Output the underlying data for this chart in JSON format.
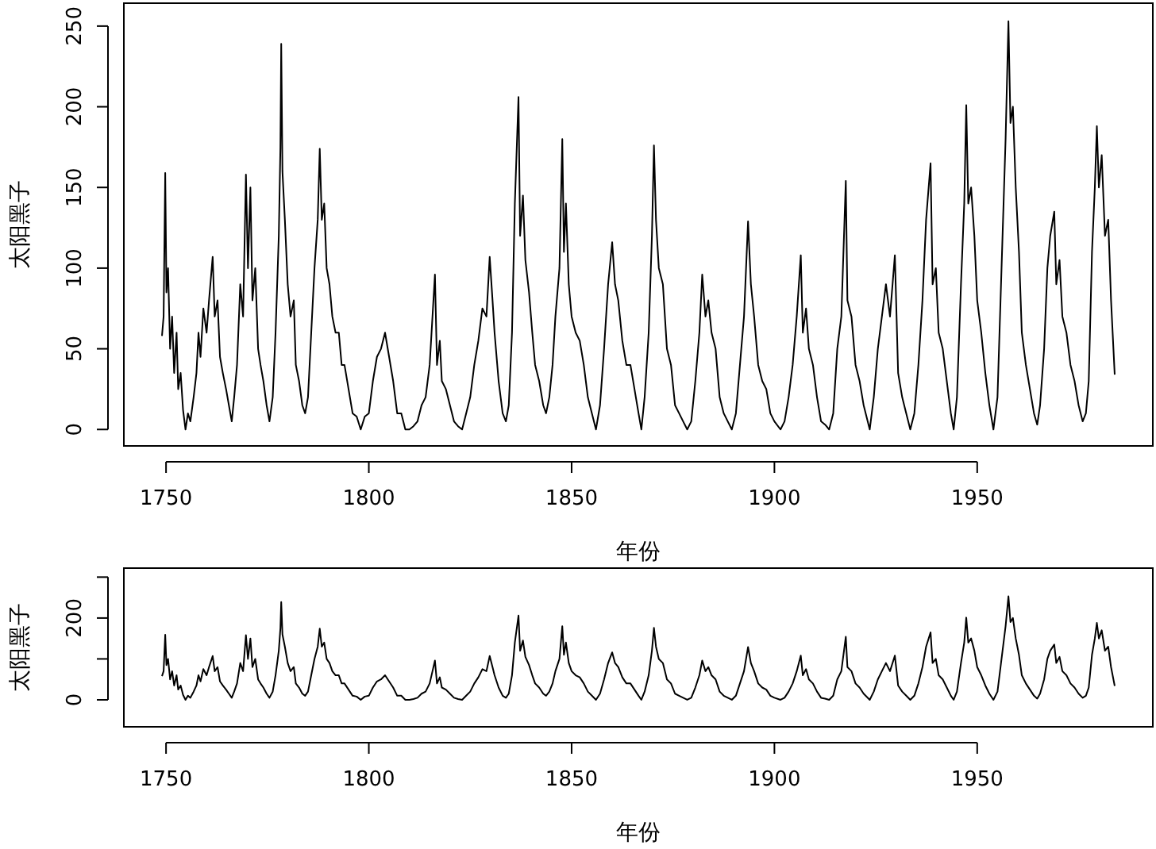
{
  "chart_data": [
    {
      "type": "line",
      "xlabel": "年份",
      "ylabel": "太阳黑子",
      "xlim": [
        1739.6,
        1993.3
      ],
      "ylim": [
        -10.2,
        264.2
      ],
      "xticks": [
        1750,
        1800,
        1850,
        1900,
        1950
      ],
      "yticks": [
        0,
        50,
        100,
        150,
        200,
        250
      ],
      "grid": false,
      "series": [
        {
          "color": "#000000",
          "x": [
            1749.0,
            1749.4,
            1749.8,
            1750.1,
            1750.5,
            1751,
            1751.5,
            1752,
            1752.6,
            1753,
            1753.6,
            1754.2,
            1754.8,
            1755.4,
            1756,
            1756.8,
            1757.5,
            1758,
            1758.5,
            1759.2,
            1760,
            1760.6,
            1761.5,
            1762,
            1762.7,
            1763.3,
            1764,
            1764.8,
            1765.5,
            1766.2,
            1766.8,
            1767.5,
            1768.3,
            1769,
            1769.7,
            1770.2,
            1770.8,
            1771.3,
            1772,
            1772.7,
            1773.3,
            1774,
            1774.8,
            1775.5,
            1776.3,
            1777,
            1777.8,
            1778.2,
            1778.4,
            1778.7,
            1779.3,
            1780,
            1780.7,
            1781.5,
            1782,
            1782.8,
            1783.6,
            1784.3,
            1785,
            1785.8,
            1786.6,
            1787.4,
            1787.9,
            1788.4,
            1789,
            1789.6,
            1790.3,
            1791,
            1791.8,
            1792.6,
            1793.3,
            1794,
            1795,
            1796,
            1797,
            1798,
            1799,
            1800,
            1801,
            1802,
            1803,
            1804,
            1805,
            1806,
            1807,
            1808,
            1809,
            1810,
            1811,
            1812,
            1813,
            1814,
            1815,
            1816.3,
            1816.8,
            1817.5,
            1818,
            1819,
            1820,
            1821,
            1822,
            1823,
            1824,
            1825,
            1826,
            1827,
            1828,
            1829,
            1829.8,
            1830.5,
            1831,
            1832,
            1833,
            1833.8,
            1834.5,
            1835.3,
            1836,
            1836.9,
            1837.3,
            1838,
            1838.6,
            1839.5,
            1840.3,
            1841,
            1842,
            1843,
            1843.7,
            1844.5,
            1845.3,
            1846,
            1847,
            1847.7,
            1848.1,
            1848.6,
            1849.3,
            1850,
            1851,
            1852,
            1853,
            1854,
            1855,
            1856,
            1857,
            1858,
            1859,
            1860,
            1860.7,
            1861.5,
            1862.5,
            1863.5,
            1864.5,
            1865.5,
            1866.5,
            1867.2,
            1868,
            1869,
            1869.8,
            1870.3,
            1870.8,
            1871.5,
            1872.5,
            1873.5,
            1874.5,
            1875.5,
            1876.5,
            1877.5,
            1878.5,
            1879.5,
            1880.5,
            1881.5,
            1882.2,
            1883,
            1883.7,
            1884.5,
            1885.5,
            1886.5,
            1887.5,
            1888.5,
            1889.5,
            1890.5,
            1891.5,
            1892.5,
            1893.5,
            1894.2,
            1895,
            1896,
            1897,
            1898,
            1899,
            1900,
            1901.5,
            1902.5,
            1903.5,
            1904.5,
            1905.5,
            1906.5,
            1907,
            1907.8,
            1908.5,
            1909.5,
            1910.5,
            1911.5,
            1912.5,
            1913.5,
            1914.5,
            1915.5,
            1916.5,
            1917.6,
            1918,
            1919,
            1920,
            1921,
            1922,
            1923.5,
            1924.5,
            1925.5,
            1926.5,
            1927.5,
            1928.5,
            1929.7,
            1930.5,
            1931.5,
            1932.5,
            1933.5,
            1934.5,
            1935.5,
            1936.5,
            1937.4,
            1938.5,
            1939,
            1939.8,
            1940.5,
            1941.5,
            1942.5,
            1943.5,
            1944.2,
            1945,
            1946,
            1946.8,
            1947.3,
            1947.8,
            1948.5,
            1949.3,
            1950,
            1951,
            1952,
            1953,
            1954,
            1955,
            1956,
            1957,
            1957.7,
            1958.2,
            1958.8,
            1959.5,
            1960.3,
            1961,
            1962,
            1963,
            1964,
            1964.8,
            1965.5,
            1966.5,
            1967.3,
            1968,
            1969,
            1969.5,
            1970.3,
            1971,
            1972,
            1973,
            1974,
            1975,
            1976,
            1976.8,
            1977.5,
            1978.3,
            1979,
            1979.5,
            1980,
            1980.7,
            1981.5,
            1982.3,
            1983,
            1983.9
          ],
          "values": [
            58,
            70,
            159,
            85,
            100,
            50,
            70,
            35,
            60,
            25,
            35,
            12,
            0,
            10,
            5,
            20,
            35,
            60,
            45,
            75,
            60,
            80,
            107,
            70,
            80,
            45,
            35,
            25,
            15,
            5,
            20,
            40,
            90,
            70,
            158,
            100,
            150,
            80,
            100,
            50,
            40,
            30,
            15,
            5,
            20,
            60,
            120,
            175,
            239,
            160,
            130,
            90,
            70,
            80,
            40,
            30,
            15,
            10,
            20,
            60,
            100,
            130,
            174,
            130,
            140,
            100,
            90,
            70,
            60,
            60,
            40,
            40,
            25,
            10,
            8,
            0,
            8,
            10,
            30,
            45,
            50,
            60,
            45,
            30,
            10,
            10,
            0,
            0,
            2,
            5,
            15,
            20,
            40,
            96,
            40,
            55,
            30,
            25,
            15,
            5,
            2,
            0,
            10,
            20,
            40,
            55,
            75,
            70,
            107,
            80,
            60,
            30,
            10,
            5,
            15,
            60,
            140,
            206,
            120,
            145,
            105,
            85,
            60,
            40,
            30,
            15,
            10,
            20,
            40,
            70,
            100,
            180,
            110,
            140,
            90,
            70,
            60,
            55,
            40,
            20,
            10,
            0,
            15,
            50,
            90,
            116,
            90,
            80,
            55,
            40,
            40,
            25,
            10,
            0,
            20,
            60,
            120,
            176,
            130,
            100,
            90,
            50,
            40,
            15,
            10,
            5,
            0,
            5,
            30,
            60,
            96,
            70,
            80,
            60,
            50,
            20,
            10,
            5,
            0,
            10,
            40,
            70,
            129,
            90,
            70,
            40,
            30,
            25,
            10,
            5,
            0,
            5,
            20,
            40,
            70,
            108,
            60,
            75,
            50,
            40,
            20,
            5,
            3,
            0,
            10,
            50,
            70,
            154,
            80,
            70,
            40,
            30,
            15,
            0,
            20,
            50,
            70,
            90,
            70,
            108,
            35,
            20,
            10,
            0,
            10,
            40,
            80,
            130,
            165,
            90,
            100,
            60,
            50,
            30,
            10,
            0,
            20,
            90,
            140,
            201,
            140,
            150,
            120,
            80,
            60,
            35,
            15,
            0,
            20,
            100,
            180,
            253,
            190,
            200,
            150,
            110,
            60,
            40,
            25,
            10,
            3,
            15,
            50,
            100,
            120,
            135,
            90,
            105,
            70,
            60,
            40,
            30,
            15,
            5,
            10,
            30,
            110,
            150,
            188,
            150,
            170,
            120,
            130,
            80,
            34
          ]
        }
      ]
    },
    {
      "type": "line",
      "xlabel": "年份",
      "ylabel": "太阳黑子",
      "xlim": [
        1739.6,
        1993.3
      ],
      "ylim": [
        -66,
        322
      ],
      "xticks": [
        1750,
        1800,
        1850,
        1900,
        1950
      ],
      "yticks": [
        0,
        {
          "value": 100,
          "label": null
        },
        200,
        {
          "value": 300,
          "label": null
        }
      ],
      "grid": false,
      "series": [
        {
          "color": "#000000",
          "x": [
            1749.0,
            1749.4,
            1749.8,
            1750.1,
            1750.5,
            1751,
            1751.5,
            1752,
            1752.6,
            1753,
            1753.6,
            1754.2,
            1754.8,
            1755.4,
            1756,
            1756.8,
            1757.5,
            1758,
            1758.5,
            1759.2,
            1760,
            1760.6,
            1761.5,
            1762,
            1762.7,
            1763.3,
            1764,
            1764.8,
            1765.5,
            1766.2,
            1766.8,
            1767.5,
            1768.3,
            1769,
            1769.7,
            1770.2,
            1770.8,
            1771.3,
            1772,
            1772.7,
            1773.3,
            1774,
            1774.8,
            1775.5,
            1776.3,
            1777,
            1777.8,
            1778.2,
            1778.4,
            1778.7,
            1779.3,
            1780,
            1780.7,
            1781.5,
            1782,
            1782.8,
            1783.6,
            1784.3,
            1785,
            1785.8,
            1786.6,
            1787.4,
            1787.9,
            1788.4,
            1789,
            1789.6,
            1790.3,
            1791,
            1791.8,
            1792.6,
            1793.3,
            1794,
            1795,
            1796,
            1797,
            1798,
            1799,
            1800,
            1801,
            1802,
            1803,
            1804,
            1805,
            1806,
            1807,
            1808,
            1809,
            1810,
            1811,
            1812,
            1813,
            1814,
            1815,
            1816.3,
            1816.8,
            1817.5,
            1818,
            1819,
            1820,
            1821,
            1822,
            1823,
            1824,
            1825,
            1826,
            1827,
            1828,
            1829,
            1829.8,
            1830.5,
            1831,
            1832,
            1833,
            1833.8,
            1834.5,
            1835.3,
            1836,
            1836.9,
            1837.3,
            1838,
            1838.6,
            1839.5,
            1840.3,
            1841,
            1842,
            1843,
            1843.7,
            1844.5,
            1845.3,
            1846,
            1847,
            1847.7,
            1848.1,
            1848.6,
            1849.3,
            1850,
            1851,
            1852,
            1853,
            1854,
            1855,
            1856,
            1857,
            1858,
            1859,
            1860,
            1860.7,
            1861.5,
            1862.5,
            1863.5,
            1864.5,
            1865.5,
            1866.5,
            1867.2,
            1868,
            1869,
            1869.8,
            1870.3,
            1870.8,
            1871.5,
            1872.5,
            1873.5,
            1874.5,
            1875.5,
            1876.5,
            1877.5,
            1878.5,
            1879.5,
            1880.5,
            1881.5,
            1882.2,
            1883,
            1883.7,
            1884.5,
            1885.5,
            1886.5,
            1887.5,
            1888.5,
            1889.5,
            1890.5,
            1891.5,
            1892.5,
            1893.5,
            1894.2,
            1895,
            1896,
            1897,
            1898,
            1899,
            1900,
            1901.5,
            1902.5,
            1903.5,
            1904.5,
            1905.5,
            1906.5,
            1907,
            1907.8,
            1908.5,
            1909.5,
            1910.5,
            1911.5,
            1912.5,
            1913.5,
            1914.5,
            1915.5,
            1916.5,
            1917.6,
            1918,
            1919,
            1920,
            1921,
            1922,
            1923.5,
            1924.5,
            1925.5,
            1926.5,
            1927.5,
            1928.5,
            1929.7,
            1930.5,
            1931.5,
            1932.5,
            1933.5,
            1934.5,
            1935.5,
            1936.5,
            1937.4,
            1938.5,
            1939,
            1939.8,
            1940.5,
            1941.5,
            1942.5,
            1943.5,
            1944.2,
            1945,
            1946,
            1946.8,
            1947.3,
            1947.8,
            1948.5,
            1949.3,
            1950,
            1951,
            1952,
            1953,
            1954,
            1955,
            1956,
            1957,
            1957.7,
            1958.2,
            1958.8,
            1959.5,
            1960.3,
            1961,
            1962,
            1963,
            1964,
            1964.8,
            1965.5,
            1966.5,
            1967.3,
            1968,
            1969,
            1969.5,
            1970.3,
            1971,
            1972,
            1973,
            1974,
            1975,
            1976,
            1976.8,
            1977.5,
            1978.3,
            1979,
            1979.5,
            1980,
            1980.7,
            1981.5,
            1982.3,
            1983,
            1983.9
          ],
          "values": [
            58,
            70,
            159,
            85,
            100,
            50,
            70,
            35,
            60,
            25,
            35,
            12,
            0,
            10,
            5,
            20,
            35,
            60,
            45,
            75,
            60,
            80,
            107,
            70,
            80,
            45,
            35,
            25,
            15,
            5,
            20,
            40,
            90,
            70,
            158,
            100,
            150,
            80,
            100,
            50,
            40,
            30,
            15,
            5,
            20,
            60,
            120,
            175,
            239,
            160,
            130,
            90,
            70,
            80,
            40,
            30,
            15,
            10,
            20,
            60,
            100,
            130,
            174,
            130,
            140,
            100,
            90,
            70,
            60,
            60,
            40,
            40,
            25,
            10,
            8,
            0,
            8,
            10,
            30,
            45,
            50,
            60,
            45,
            30,
            10,
            10,
            0,
            0,
            2,
            5,
            15,
            20,
            40,
            96,
            40,
            55,
            30,
            25,
            15,
            5,
            2,
            0,
            10,
            20,
            40,
            55,
            75,
            70,
            107,
            80,
            60,
            30,
            10,
            5,
            15,
            60,
            140,
            206,
            120,
            145,
            105,
            85,
            60,
            40,
            30,
            15,
            10,
            20,
            40,
            70,
            100,
            180,
            110,
            140,
            90,
            70,
            60,
            55,
            40,
            20,
            10,
            0,
            15,
            50,
            90,
            116,
            90,
            80,
            55,
            40,
            40,
            25,
            10,
            0,
            20,
            60,
            120,
            176,
            130,
            100,
            90,
            50,
            40,
            15,
            10,
            5,
            0,
            5,
            30,
            60,
            96,
            70,
            80,
            60,
            50,
            20,
            10,
            5,
            0,
            10,
            40,
            70,
            129,
            90,
            70,
            40,
            30,
            25,
            10,
            5,
            0,
            5,
            20,
            40,
            70,
            108,
            60,
            75,
            50,
            40,
            20,
            5,
            3,
            0,
            10,
            50,
            70,
            154,
            80,
            70,
            40,
            30,
            15,
            0,
            20,
            50,
            70,
            90,
            70,
            108,
            35,
            20,
            10,
            0,
            10,
            40,
            80,
            130,
            165,
            90,
            100,
            60,
            50,
            30,
            10,
            0,
            20,
            90,
            140,
            201,
            140,
            150,
            120,
            80,
            60,
            35,
            15,
            0,
            20,
            100,
            180,
            253,
            190,
            200,
            150,
            110,
            60,
            40,
            25,
            10,
            3,
            15,
            50,
            100,
            120,
            135,
            90,
            105,
            70,
            60,
            40,
            30,
            15,
            5,
            10,
            30,
            110,
            150,
            188,
            150,
            170,
            120,
            130,
            80,
            34
          ]
        }
      ]
    }
  ]
}
